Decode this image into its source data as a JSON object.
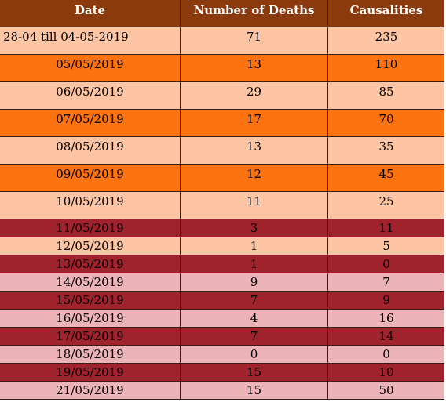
{
  "table": {
    "headers": [
      "Date",
      "Number of Deaths",
      "Causalities"
    ],
    "header_color": "#8b3a0e",
    "rows": [
      {
        "date": "28-04 till 04-05-2019",
        "deaths": "71",
        "casualties": "235",
        "bg": "#fdc5a3",
        "size": "tall",
        "align": "left"
      },
      {
        "date": "05/05/2019",
        "deaths": "13",
        "casualties": "110",
        "bg": "#fd7310",
        "size": "tall"
      },
      {
        "date": "06/05/2019",
        "deaths": "29",
        "casualties": "85",
        "bg": "#fdc5a3",
        "size": "tall"
      },
      {
        "date": "07/05/2019",
        "deaths": "17",
        "casualties": "70",
        "bg": "#fd7310",
        "size": "tall"
      },
      {
        "date": "08/05/2019",
        "deaths": "13",
        "casualties": "35",
        "bg": "#fdc5a3",
        "size": "tall"
      },
      {
        "date": "09/05/2019",
        "deaths": "12",
        "casualties": "45",
        "bg": "#fd7310",
        "size": "tall"
      },
      {
        "date": "10/05/2019",
        "deaths": "11",
        "casualties": "25",
        "bg": "#fdc5a3",
        "size": "tall"
      },
      {
        "date": "11/05/2019",
        "deaths": "3",
        "casualties": "11",
        "bg": "#a0222d",
        "size": "short"
      },
      {
        "date": "12/05/2019",
        "deaths": "1",
        "casualties": "5",
        "bg": "#fdc5a3",
        "size": "short"
      },
      {
        "date": "13/05/2019",
        "deaths": "1",
        "casualties": "0",
        "bg": "#a0222d",
        "size": "short"
      },
      {
        "date": "14/05/2019",
        "deaths": "9",
        "casualties": "7",
        "bg": "#ecb4b8",
        "size": "short"
      },
      {
        "date": "15/05/2019",
        "deaths": "7",
        "casualties": "9",
        "bg": "#a0222d",
        "size": "short"
      },
      {
        "date": "16/05/2019",
        "deaths": "4",
        "casualties": "16",
        "bg": "#ecb4b8",
        "size": "short"
      },
      {
        "date": "17/05/2019",
        "deaths": "7",
        "casualties": "14",
        "bg": "#a0222d",
        "size": "short"
      },
      {
        "date": "18/05/2019",
        "deaths": "0",
        "casualties": "0",
        "bg": "#ecb4b8",
        "size": "short"
      },
      {
        "date": "19/05/2019",
        "deaths": "15",
        "casualties": "10",
        "bg": "#a0222d",
        "size": "short"
      },
      {
        "date": "21/05/2019",
        "deaths": "15",
        "casualties": "50",
        "bg": "#ecb4b8",
        "size": "short"
      }
    ]
  }
}
